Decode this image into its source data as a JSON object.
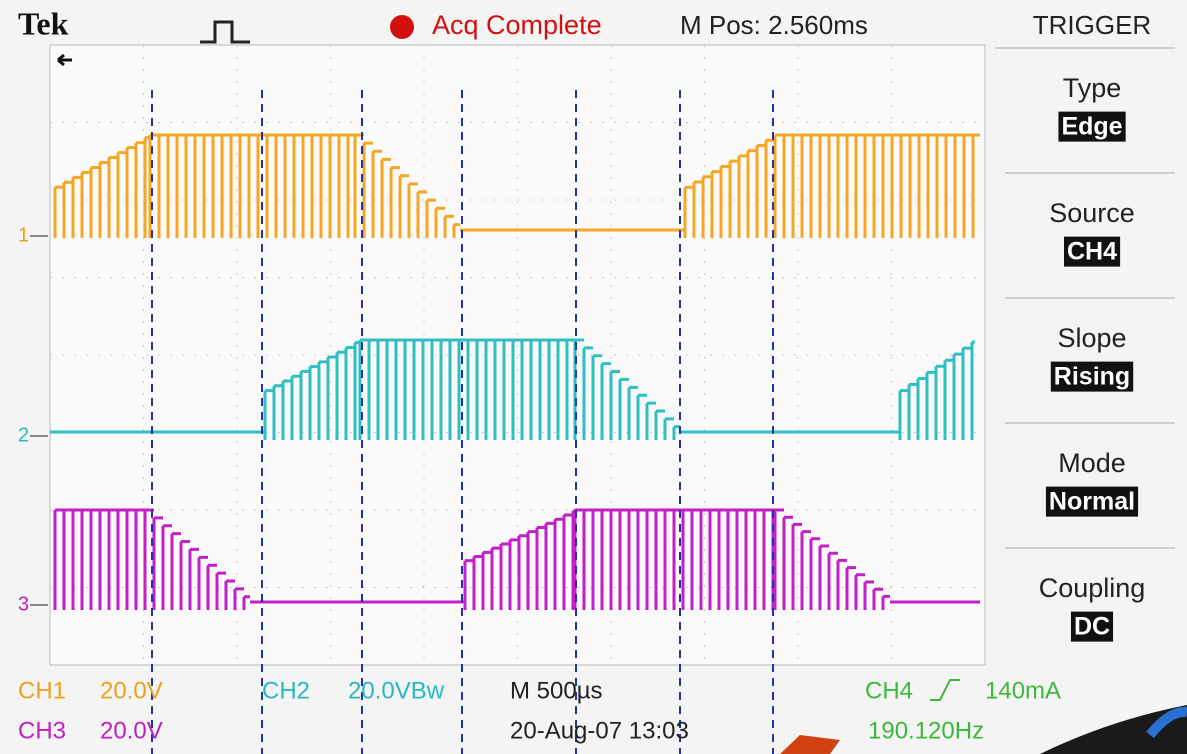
{
  "header": {
    "brand": "Tek",
    "status": "Acq Complete",
    "position": "M Pos: 2.560ms"
  },
  "menu": {
    "title": "TRIGGER",
    "items": [
      {
        "label": "Type",
        "value": "Edge"
      },
      {
        "label": "Source",
        "value": "CH4"
      },
      {
        "label": "Slope",
        "value": "Rising"
      },
      {
        "label": "Mode",
        "value": "Normal"
      },
      {
        "label": "Coupling",
        "value": "DC"
      }
    ]
  },
  "markers": [
    "1",
    "2",
    "3"
  ],
  "footer": {
    "ch1": {
      "name": "CH1",
      "scale": "20.0V"
    },
    "ch2": {
      "name": "CH2",
      "scale": "20.0VBw"
    },
    "ch3": {
      "name": "CH3",
      "scale": "20.0V"
    },
    "timebase": "M 500µs",
    "date": "20-Aug-07 13:03",
    "trigger": {
      "name": "CH4",
      "level": "140mA"
    },
    "frequency": "190.120Hz"
  }
}
